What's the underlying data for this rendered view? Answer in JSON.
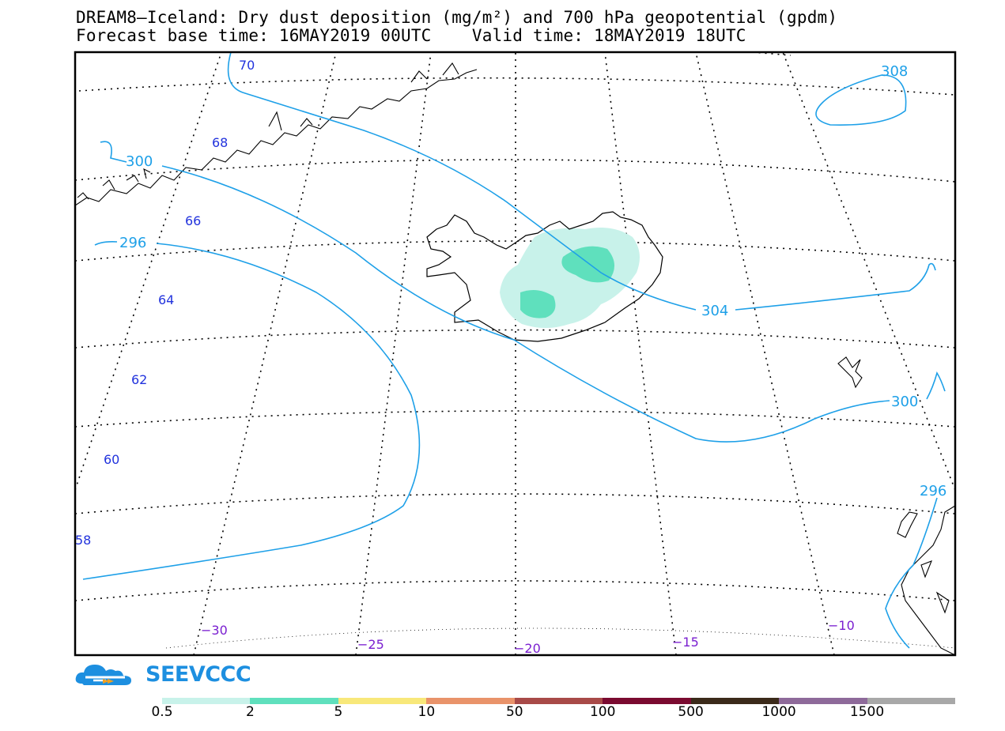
{
  "title_line1": "DREAM8—Iceland: Dry dust deposition (mg/m²) and 700 hPa geopotential (gpdm)",
  "title_line2": "Forecast base time: 16MAY2019 00UTC    Valid time: 18MAY2019 18UTC",
  "latitude_labels": [
    "70",
    "68",
    "66",
    "64",
    "62",
    "60",
    "58"
  ],
  "longitude_labels": [
    "−30",
    "−25",
    "−20",
    "−15",
    "−10"
  ],
  "geopotential_contours": [
    "308",
    "300",
    "296",
    "304",
    "300",
    "296"
  ],
  "logo": {
    "text": "SEEVCCC",
    "icon": "cloud-logo-icon"
  },
  "colorbar": {
    "labels": [
      "0.5",
      "2",
      "5",
      "10",
      "50",
      "100",
      "500",
      "1000",
      "1500"
    ],
    "colors": [
      "#c8f2ea",
      "#5fe0bd",
      "#f8e87a",
      "#e9936a",
      "#a84a48",
      "#7a0a30",
      "#3b2a1a",
      "#8e6a9a",
      "#a8a8a8"
    ]
  },
  "colors": {
    "contour": "#1ea0e8",
    "lat_label": "#2233dd",
    "lon_label": "#7a1fd0",
    "logo": "#1d8fe0"
  }
}
